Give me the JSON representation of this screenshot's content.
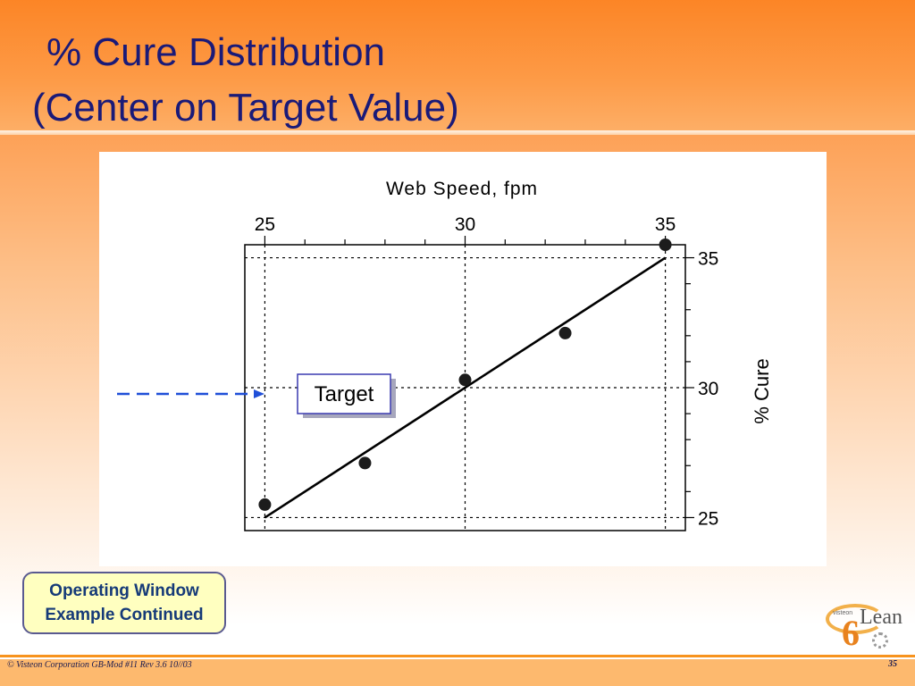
{
  "slide": {
    "title_line1": "% Cure Distribution",
    "title_line2": "(Center on Target Value)",
    "badge_line1": "Operating Window",
    "badge_line2": "Example Continued",
    "footer_copyright": "© Visteon Corporation  GB-Mod #11 Rev 3.6  10//03",
    "page_number": "35",
    "logo_text": "Lean",
    "logo_digit": "6",
    "logo_small": "visteon",
    "title_color": "#1a1a78",
    "badge_bg": "#ffffc0",
    "accent_orange": "#f7931e"
  },
  "chart_data": {
    "type": "scatter",
    "title": "",
    "xlabel": "Web Speed, fpm",
    "ylabel": "% Cure",
    "xlim": [
      24.5,
      35.5
    ],
    "ylim": [
      24.5,
      35.5
    ],
    "x_axis_position": "top",
    "y_axis_position": "right",
    "xticks": [
      25,
      30,
      35
    ],
    "yticks": [
      25,
      30,
      35
    ],
    "reference_lines": {
      "x": [
        25,
        30,
        35
      ],
      "y": [
        25,
        30,
        35
      ],
      "style": "dotted"
    },
    "series": [
      {
        "points": [
          {
            "x": 25,
            "y": 25.5
          },
          {
            "x": 27.5,
            "y": 27.1
          },
          {
            "x": 30,
            "y": 30.3
          },
          {
            "x": 32.5,
            "y": 32.1
          },
          {
            "x": 35,
            "y": 35.5
          }
        ]
      }
    ],
    "fit_line": {
      "from": {
        "x": 25,
        "y": 25
      },
      "to": {
        "x": 35,
        "y": 35
      }
    },
    "annotation": {
      "label": "Target",
      "y": 30,
      "color": "#1f4fd8"
    }
  }
}
